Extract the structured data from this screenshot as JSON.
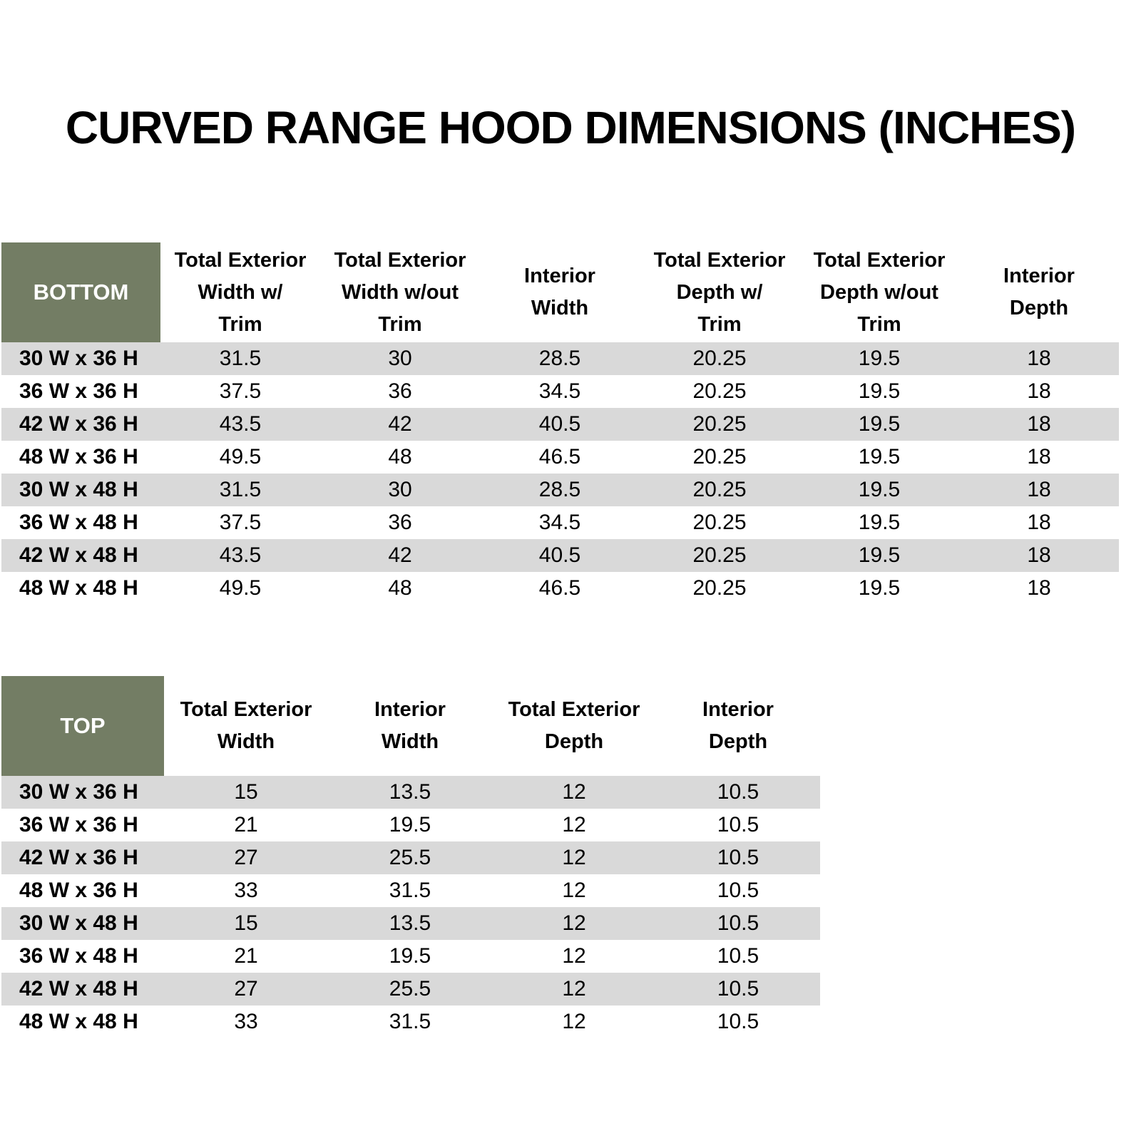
{
  "page": {
    "title": "CURVED RANGE HOOD DIMENSIONS (INCHES)"
  },
  "colors": {
    "corner_green": "#737d64",
    "stripe_gray": "#d9d9d9",
    "corner_text": "#ffffff",
    "body_text": "#000000",
    "background": "#ffffff"
  },
  "bottom_table": {
    "corner_label": "BOTTOM",
    "columns": [
      "Total Exterior\nWidth w/\nTrim",
      "Total Exterior\nWidth w/out\nTrim",
      "Interior\nWidth",
      "Total Exterior\nDepth w/\nTrim",
      "Total Exterior\nDepth w/out\nTrim",
      "Interior\nDepth"
    ],
    "rows": [
      {
        "label": "30 W x 36 H",
        "values": [
          "31.5",
          "30",
          "28.5",
          "20.25",
          "19.5",
          "18"
        ]
      },
      {
        "label": "36 W x 36 H",
        "values": [
          "37.5",
          "36",
          "34.5",
          "20.25",
          "19.5",
          "18"
        ]
      },
      {
        "label": "42 W x 36 H",
        "values": [
          "43.5",
          "42",
          "40.5",
          "20.25",
          "19.5",
          "18"
        ]
      },
      {
        "label": "48 W x 36 H",
        "values": [
          "49.5",
          "48",
          "46.5",
          "20.25",
          "19.5",
          "18"
        ]
      },
      {
        "label": "30 W x 48 H",
        "values": [
          "31.5",
          "30",
          "28.5",
          "20.25",
          "19.5",
          "18"
        ]
      },
      {
        "label": "36 W x 48 H",
        "values": [
          "37.5",
          "36",
          "34.5",
          "20.25",
          "19.5",
          "18"
        ]
      },
      {
        "label": "42 W x 48 H",
        "values": [
          "43.5",
          "42",
          "40.5",
          "20.25",
          "19.5",
          "18"
        ]
      },
      {
        "label": "48 W x 48 H",
        "values": [
          "49.5",
          "48",
          "46.5",
          "20.25",
          "19.5",
          "18"
        ]
      }
    ]
  },
  "top_table": {
    "corner_label": "TOP",
    "columns": [
      "Total Exterior\nWidth",
      "Interior\nWidth",
      "Total Exterior\nDepth",
      "Interior\nDepth"
    ],
    "rows": [
      {
        "label": "30 W x 36 H",
        "values": [
          "15",
          "13.5",
          "12",
          "10.5"
        ]
      },
      {
        "label": "36 W x 36 H",
        "values": [
          "21",
          "19.5",
          "12",
          "10.5"
        ]
      },
      {
        "label": "42 W x 36 H",
        "values": [
          "27",
          "25.5",
          "12",
          "10.5"
        ]
      },
      {
        "label": "48 W x 36 H",
        "values": [
          "33",
          "31.5",
          "12",
          "10.5"
        ]
      },
      {
        "label": "30 W x 48 H",
        "values": [
          "15",
          "13.5",
          "12",
          "10.5"
        ]
      },
      {
        "label": "36 W x 48 H",
        "values": [
          "21",
          "19.5",
          "12",
          "10.5"
        ]
      },
      {
        "label": "42 W x 48 H",
        "values": [
          "27",
          "25.5",
          "12",
          "10.5"
        ]
      },
      {
        "label": "48 W x 48 H",
        "values": [
          "33",
          "31.5",
          "12",
          "10.5"
        ]
      }
    ]
  }
}
